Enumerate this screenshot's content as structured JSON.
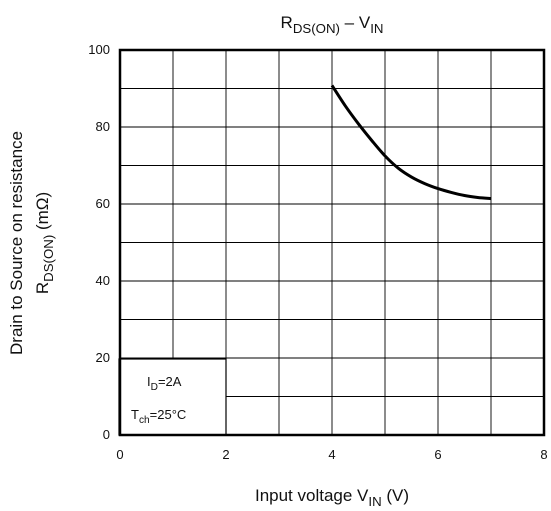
{
  "chart_data": {
    "type": "line",
    "title": {
      "main": "R",
      "main_sub": "DS(ON)",
      "dash": " – V",
      "var_sub": "IN"
    },
    "xlabel": {
      "prefix": "Input voltage   V",
      "sub": "IN",
      "suffix": " (V)"
    },
    "ylabel": {
      "line1": "Drain to Source on resistance",
      "line2_main": "R",
      "line2_sub": "DS(ON)",
      "line2_unit": "  (mΩ)"
    },
    "xlim": [
      0,
      8
    ],
    "ylim": [
      0,
      100
    ],
    "x_ticks": [
      0,
      2,
      4,
      6,
      8
    ],
    "y_ticks": [
      0,
      20,
      40,
      60,
      80,
      100
    ],
    "x_minor_step": 1,
    "y_minor_step": 10,
    "grid": true,
    "series": [
      {
        "x": [
          4.0,
          4.25,
          4.5,
          4.75,
          5.0,
          5.25,
          5.5,
          5.75,
          6.0,
          6.25,
          6.5,
          6.75,
          7.0
        ],
        "y": [
          90.8,
          85.5,
          80.8,
          76.5,
          72.5,
          69.3,
          67.0,
          65.3,
          64.0,
          63.0,
          62.2,
          61.7,
          61.4
        ],
        "color": "#000000"
      }
    ],
    "annotation": {
      "id_main": "I",
      "id_sub": "D",
      "id_value": "=2A",
      "tch_main": "T",
      "tch_sub": "ch",
      "tch_value": "=25°C"
    }
  }
}
